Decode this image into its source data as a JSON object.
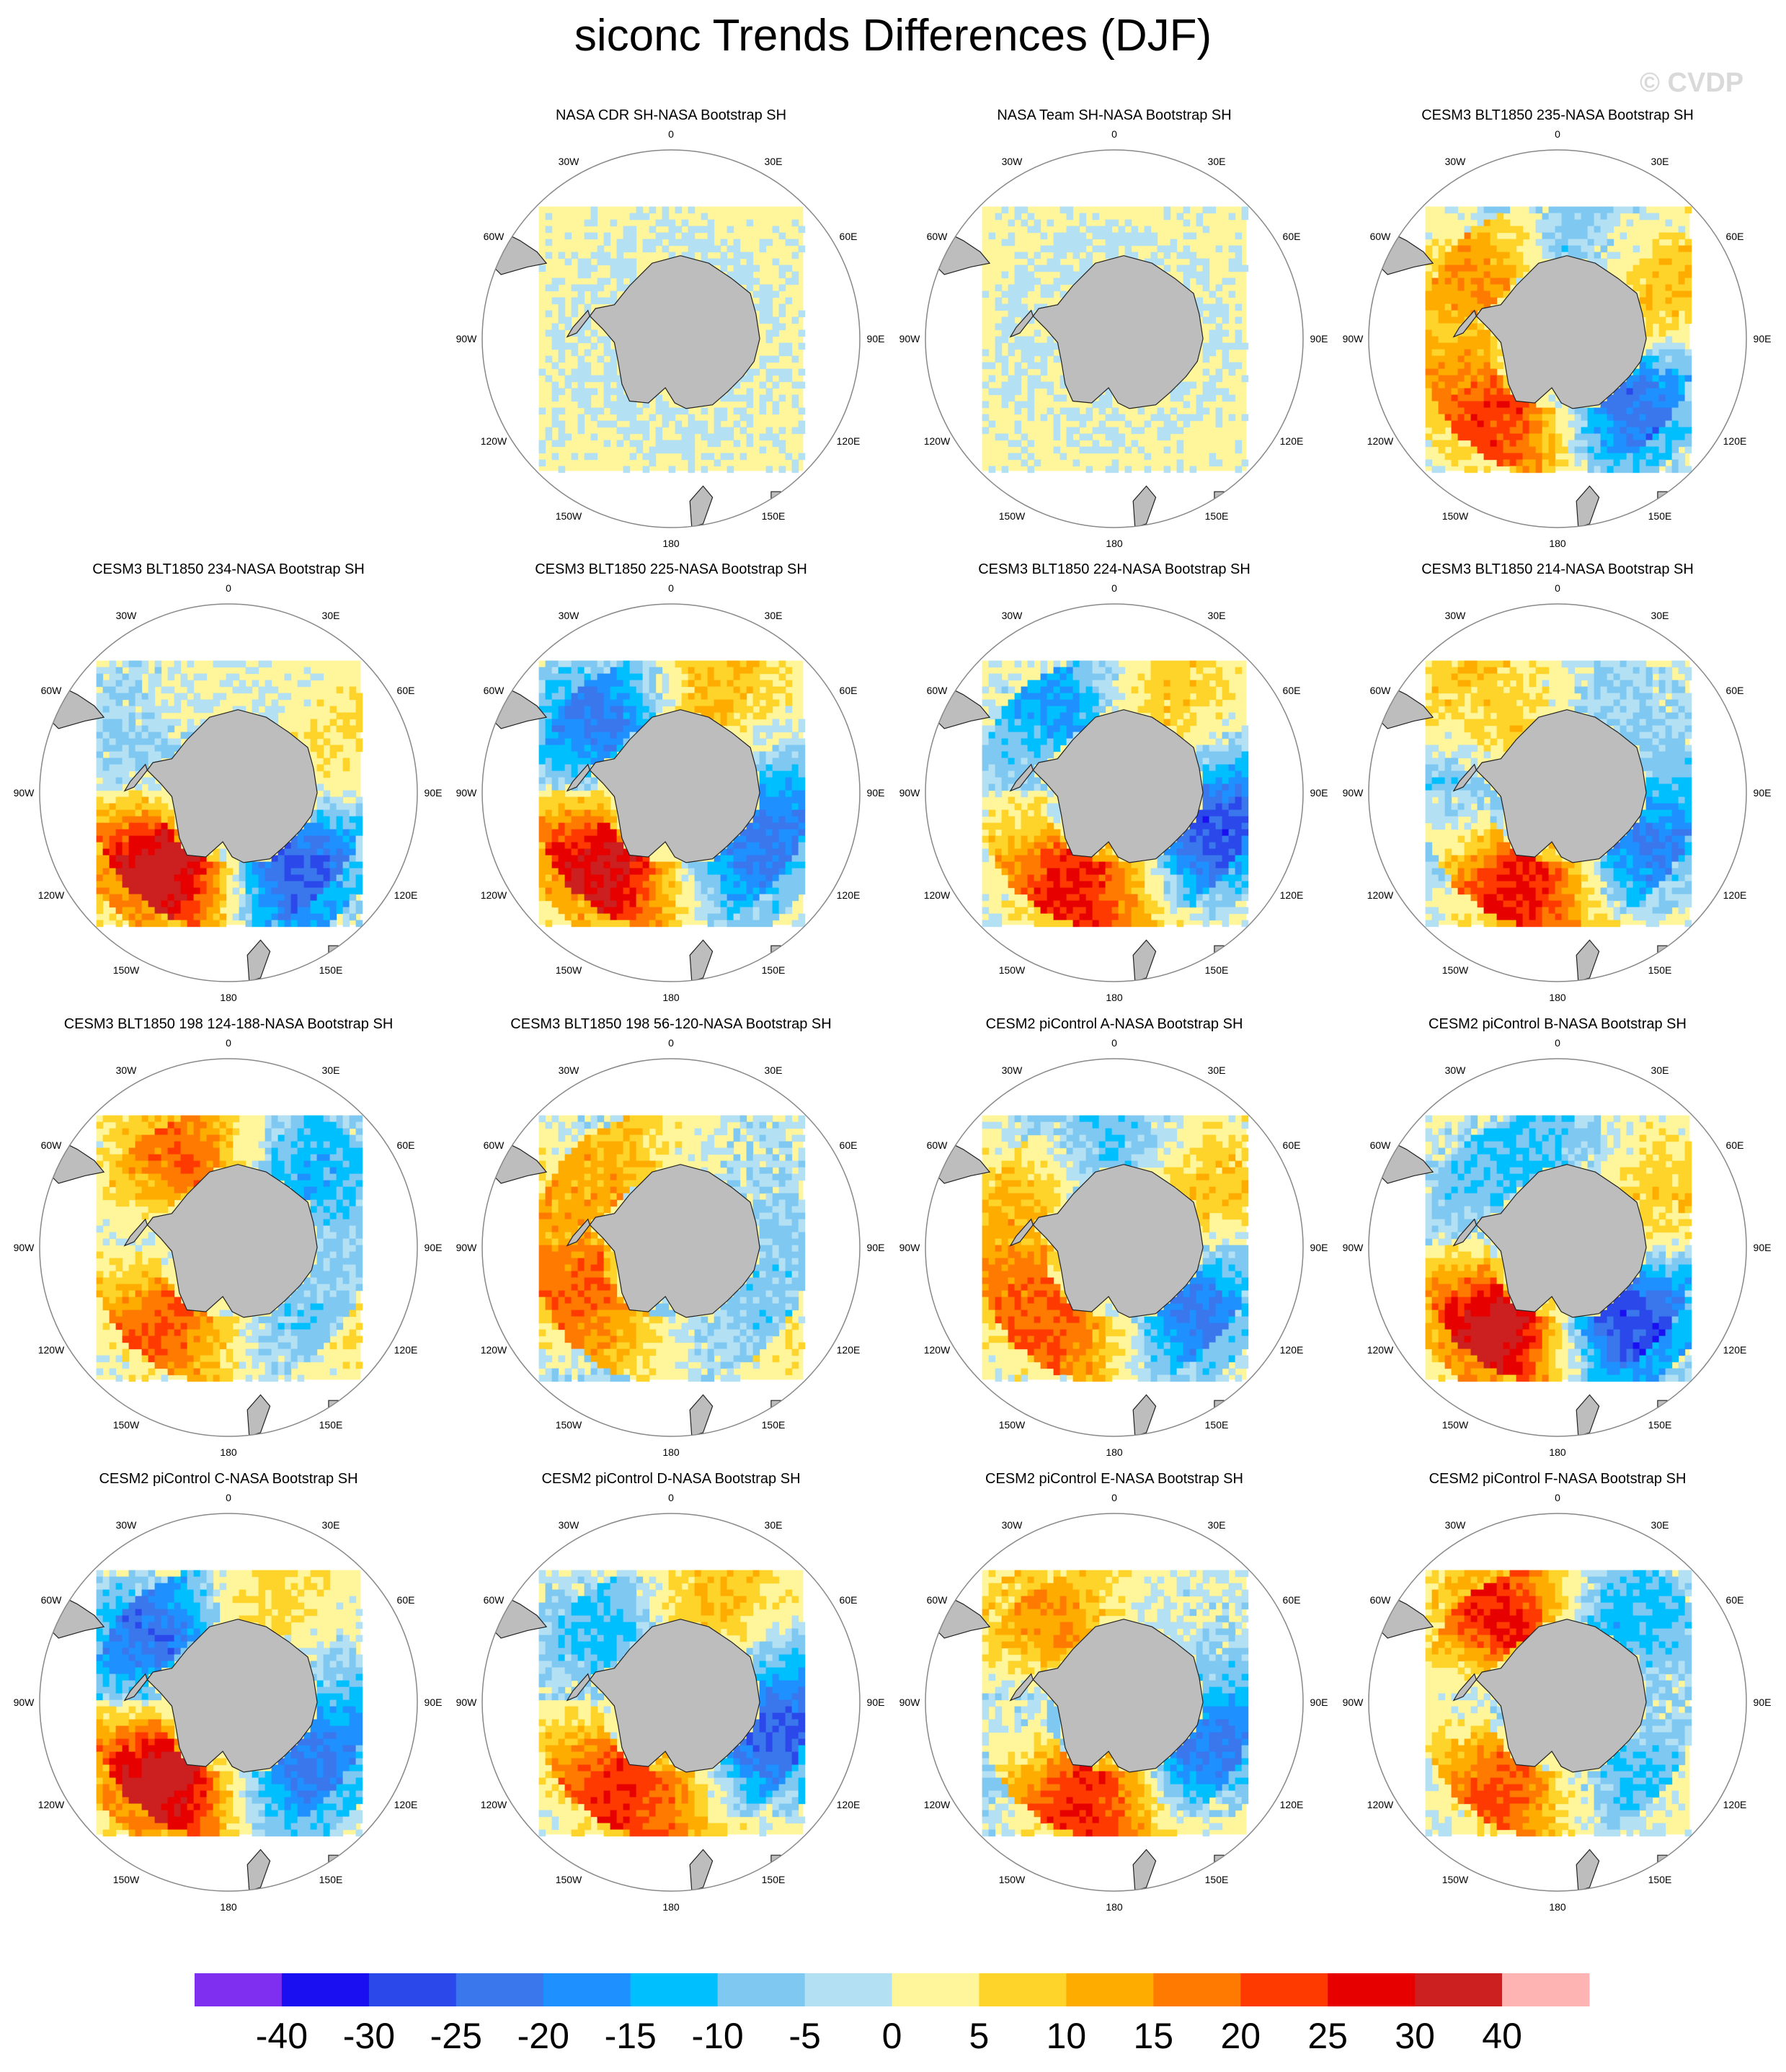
{
  "title": "siconc Trends Differences (DJF)",
  "watermark": "© CVDP",
  "chart_data": {
    "type": "heatmap",
    "projection": "south-polar-stereographic",
    "variable": "siconc",
    "season": "DJF",
    "longitude_labels": [
      "0",
      "30E",
      "60E",
      "90E",
      "120E",
      "150E",
      "180",
      "150W",
      "120W",
      "90W",
      "60W",
      "30W"
    ],
    "panels": [
      {
        "title": "NASA CDR SH-NASA Bootstrap SH",
        "pattern": 0
      },
      {
        "title": "NASA Team SH-NASA Bootstrap SH",
        "pattern": 1
      },
      {
        "title": "CESM3 BLT1850 235-NASA Bootstrap SH",
        "pattern": 2
      },
      {
        "title": "CESM3 BLT1850 234-NASA Bootstrap SH",
        "pattern": 3
      },
      {
        "title": "CESM3 BLT1850 225-NASA Bootstrap SH",
        "pattern": 4
      },
      {
        "title": "CESM3 BLT1850 224-NASA Bootstrap SH",
        "pattern": 5
      },
      {
        "title": "CESM3 BLT1850 214-NASA Bootstrap SH",
        "pattern": 6
      },
      {
        "title": "CESM3 BLT1850 198 124-188-NASA Bootstrap SH",
        "pattern": 7
      },
      {
        "title": "CESM3 BLT1850 198 56-120-NASA Bootstrap SH",
        "pattern": 8
      },
      {
        "title": "CESM2 piControl A-NASA Bootstrap SH",
        "pattern": 9
      },
      {
        "title": "CESM2 piControl B-NASA Bootstrap SH",
        "pattern": 10
      },
      {
        "title": "CESM2 piControl C-NASA Bootstrap SH",
        "pattern": 11
      },
      {
        "title": "CESM2 piControl D-NASA Bootstrap SH",
        "pattern": 12
      },
      {
        "title": "CESM2 piControl E-NASA Bootstrap SH",
        "pattern": 13
      },
      {
        "title": "CESM2 piControl F-NASA Bootstrap SH",
        "pattern": 14
      }
    ],
    "colorbar": {
      "tick_labels": [
        "-40",
        "-30",
        "-25",
        "-20",
        "-15",
        "-10",
        "-5",
        "0",
        "5",
        "10",
        "15",
        "20",
        "25",
        "30",
        "40"
      ],
      "colors": [
        "#7f2ff0",
        "#1a0ff0",
        "#2b49ea",
        "#3a76ec",
        "#1e90ff",
        "#00bfff",
        "#7ec8f2",
        "#b4e0f4",
        "#fff59a",
        "#ffd42a",
        "#ffac00",
        "#ff7a00",
        "#ff3a00",
        "#e60000",
        "#cc2020",
        "#ffb4b4"
      ]
    }
  }
}
